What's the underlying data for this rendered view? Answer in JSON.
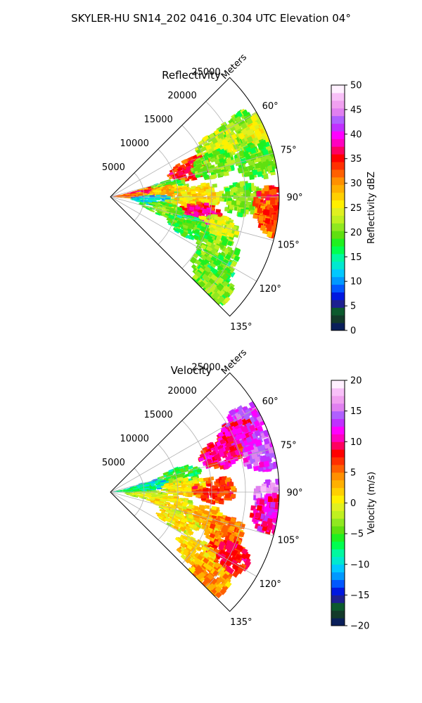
{
  "figure": {
    "suptitle": "SKYLER-HU  SN14_202  0416_0.304 UTC Elevation 04°"
  },
  "colors": {
    "grid": "#b0b0b0",
    "frame": "#000000"
  },
  "chart_data": [
    {
      "type": "heatmap",
      "title": "Reflectivity",
      "projection": "polar-sector",
      "theta_ticks_deg": [
        60,
        75,
        90,
        105,
        120,
        135
      ],
      "theta_tick_labels": [
        "60°",
        "75°",
        "90°",
        "105°",
        "120°",
        "135°"
      ],
      "theta_range_deg": [
        45,
        135
      ],
      "r_ticks": [
        5000,
        10000,
        15000,
        20000,
        25000
      ],
      "r_tick_labels": [
        "5000",
        "10000",
        "15000",
        "20000",
        "25000"
      ],
      "r_range": [
        0,
        25000
      ],
      "r_axis_label": "Meters",
      "grid": true,
      "colorbar": {
        "label": "Reflectivity dBZ",
        "range": [
          0,
          50
        ],
        "ticks": [
          0,
          5,
          10,
          15,
          20,
          25,
          30,
          35,
          40,
          45,
          50
        ],
        "tick_labels": [
          "0",
          "5",
          "10",
          "15",
          "20",
          "25",
          "30",
          "35",
          "40",
          "45",
          "50"
        ],
        "colors": [
          "#0a1f5a",
          "#133a2a",
          "#0c5a2e",
          "#1e2090",
          "#0018e0",
          "#0058ff",
          "#0098ff",
          "#00c8ff",
          "#00e8d0",
          "#00f8a0",
          "#00ff50",
          "#20f020",
          "#60e010",
          "#90e820",
          "#c0f020",
          "#e0f020",
          "#fff000",
          "#ffd000",
          "#ffb000",
          "#ff9000",
          "#ff6000",
          "#ff3000",
          "#ff0000",
          "#ff0060",
          "#ff00c0",
          "#ff00ff",
          "#c030ff",
          "#b060ff",
          "#e080f0",
          "#f0a0f0",
          "#f8c0f8",
          "#fff0ff"
        ]
      },
      "cells": [
        {
          "theta_deg": 62,
          "r": 21000,
          "value": 22
        },
        {
          "theta_deg": 64,
          "r": 17000,
          "value": 25
        },
        {
          "theta_deg": 66,
          "r": 24000,
          "value": 26
        },
        {
          "theta_deg": 70,
          "r": 12000,
          "value": 36
        },
        {
          "theta_deg": 72,
          "r": 15500,
          "value": 22
        },
        {
          "theta_deg": 75,
          "r": 22000,
          "value": 21
        },
        {
          "theta_deg": 80,
          "r": 8000,
          "value": 21
        },
        {
          "theta_deg": 82,
          "r": 4500,
          "value": 33
        },
        {
          "theta_deg": 84,
          "r": 3000,
          "value": 40
        },
        {
          "theta_deg": 86,
          "r": 2000,
          "value": 33
        },
        {
          "theta_deg": 85,
          "r": 8500,
          "value": 30
        },
        {
          "theta_deg": 88,
          "r": 13000,
          "value": 28
        },
        {
          "theta_deg": 90,
          "r": 19000,
          "value": 22
        },
        {
          "theta_deg": 92,
          "r": 24000,
          "value": 36
        },
        {
          "theta_deg": 96,
          "r": 24500,
          "value": 34
        },
        {
          "theta_deg": 94,
          "r": 6000,
          "value": 14
        },
        {
          "theta_deg": 97,
          "r": 10500,
          "value": 27
        },
        {
          "theta_deg": 100,
          "r": 13000,
          "value": 38
        },
        {
          "theta_deg": 102,
          "r": 7500,
          "value": 22
        },
        {
          "theta_deg": 106,
          "r": 16000,
          "value": 25
        },
        {
          "theta_deg": 110,
          "r": 12000,
          "value": 20
        },
        {
          "theta_deg": 116,
          "r": 17500,
          "value": 22
        },
        {
          "theta_deg": 124,
          "r": 18000,
          "value": 21
        },
        {
          "theta_deg": 130,
          "r": 19500,
          "value": 22
        }
      ]
    },
    {
      "type": "heatmap",
      "title": "Velocity",
      "projection": "polar-sector",
      "theta_ticks_deg": [
        60,
        75,
        90,
        105,
        120,
        135
      ],
      "theta_tick_labels": [
        "60°",
        "75°",
        "90°",
        "105°",
        "120°",
        "135°"
      ],
      "theta_range_deg": [
        45,
        135
      ],
      "r_ticks": [
        5000,
        10000,
        15000,
        20000,
        25000
      ],
      "r_tick_labels": [
        "5000",
        "10000",
        "15000",
        "20000",
        "25000"
      ],
      "r_range": [
        0,
        25000
      ],
      "r_axis_label": "Meters",
      "grid": true,
      "colorbar": {
        "label": "Velocity (m/s)",
        "range": [
          -20,
          20
        ],
        "ticks": [
          -20,
          -15,
          -10,
          -5,
          0,
          5,
          10,
          15,
          20
        ],
        "tick_labels": [
          "−20",
          "−15",
          "−10",
          "−5",
          "0",
          "5",
          "10",
          "15",
          "20"
        ],
        "colors": [
          "#0a1f5a",
          "#133a2a",
          "#0c5a2e",
          "#1e2090",
          "#0018e0",
          "#0058ff",
          "#0098ff",
          "#00c8ff",
          "#00e8d0",
          "#00f8a0",
          "#00ff50",
          "#20f020",
          "#60e010",
          "#90e820",
          "#c0f020",
          "#e0f020",
          "#fff000",
          "#ffd000",
          "#ffb000",
          "#ff9000",
          "#ff6000",
          "#ff3000",
          "#ff0000",
          "#ff0060",
          "#ff00c0",
          "#ff00ff",
          "#c030ff",
          "#b060ff",
          "#e080f0",
          "#f0a0f0",
          "#f8c0f8",
          "#fff0ff"
        ]
      },
      "cells": [
        {
          "theta_deg": 62,
          "r": 22000,
          "value": 15
        },
        {
          "theta_deg": 66,
          "r": 20000,
          "value": 12
        },
        {
          "theta_deg": 70,
          "r": 17000,
          "value": 11
        },
        {
          "theta_deg": 74,
          "r": 23000,
          "value": 15
        },
        {
          "theta_deg": 76,
          "r": 10000,
          "value": -4
        },
        {
          "theta_deg": 80,
          "r": 5000,
          "value": -8
        },
        {
          "theta_deg": 84,
          "r": 3000,
          "value": -6
        },
        {
          "theta_deg": 85,
          "r": 10500,
          "value": 2
        },
        {
          "theta_deg": 88,
          "r": 15000,
          "value": 8
        },
        {
          "theta_deg": 92,
          "r": 24000,
          "value": 17
        },
        {
          "theta_deg": 97,
          "r": 24000,
          "value": 12
        },
        {
          "theta_deg": 94,
          "r": 5000,
          "value": 0
        },
        {
          "theta_deg": 100,
          "r": 9000,
          "value": 2
        },
        {
          "theta_deg": 104,
          "r": 14000,
          "value": 4
        },
        {
          "theta_deg": 108,
          "r": 17500,
          "value": 6
        },
        {
          "theta_deg": 112,
          "r": 10500,
          "value": 2
        },
        {
          "theta_deg": 118,
          "r": 19500,
          "value": 9
        },
        {
          "theta_deg": 124,
          "r": 15000,
          "value": 3
        },
        {
          "theta_deg": 130,
          "r": 19000,
          "value": 5
        }
      ]
    }
  ]
}
